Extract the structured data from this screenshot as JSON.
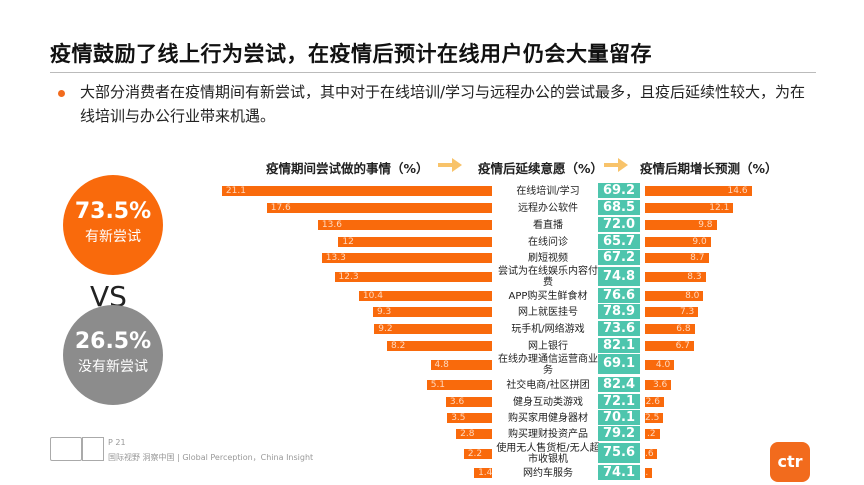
{
  "title": "疫情鼓励了线上行为尝试，在疫情后预计在线用户仍会大量留存",
  "description": "大部分消费者在疫情期间有新尝试，其中对于在线培训/学习与远程办公的尝试最多，且疫后延续性较大，为在线培训与办公行业带来机遇。",
  "summary": {
    "new_pct": "73.5%",
    "new_label": "有新尝试",
    "vs": "VS",
    "none_pct": "26.5%",
    "none_label": "没有新尝试"
  },
  "colors": {
    "orange": "#f96a0c",
    "teal": "#4ec5ad",
    "gray": "#8c8c8c",
    "arrow": "#f8c36a"
  },
  "chart_data": {
    "type": "bar",
    "headers": [
      "疫情期间尝试做的事情（%）",
      "疫情后延续意愿（%）",
      "疫情后期增长预测（%）"
    ],
    "categories": [
      "在线培训/学习",
      "远程办公软件",
      "看直播",
      "在线问诊",
      "刷短视频",
      "尝试为在线娱乐内容付费",
      "APP购买生鲜食材",
      "网上就医挂号",
      "玩手机/网络游戏",
      "网上银行",
      "在线办理通信运营商业务",
      "社交电商/社区拼团",
      "健身互动类游戏",
      "购买家用健身器材",
      "购买理财投资产品",
      "使用无人售货柜/无人超市收银机",
      "网约车服务"
    ],
    "tried": [
      "21.1",
      "17.6",
      "13.6",
      "12",
      "13.3",
      "12.3",
      "10.4",
      "9.3",
      "9.2",
      "8.2",
      "4.8",
      "5.1",
      "3.6",
      "3.5",
      "2.8",
      "2.2",
      "1.4"
    ],
    "continue": [
      "69.2",
      "68.5",
      "72.0",
      "65.7",
      "67.2",
      "74.8",
      "76.6",
      "78.9",
      "73.6",
      "82.1",
      "69.1",
      "82.4",
      "72.1",
      "70.1",
      "79.2",
      "75.6",
      "74.1"
    ],
    "growth": [
      "14.6",
      "12.1",
      "9.8",
      "9.0",
      "8.7",
      "8.3",
      "8.0",
      "7.3",
      "6.8",
      "6.7",
      "4.0",
      "3.6",
      "2.6",
      "2.5",
      ".2",
      ".6",
      "."
    ]
  },
  "footer": {
    "page": "P 21",
    "slogan": "国际视野  洞察中国 | Global Perception，China Insight",
    "brand": "ctr"
  }
}
